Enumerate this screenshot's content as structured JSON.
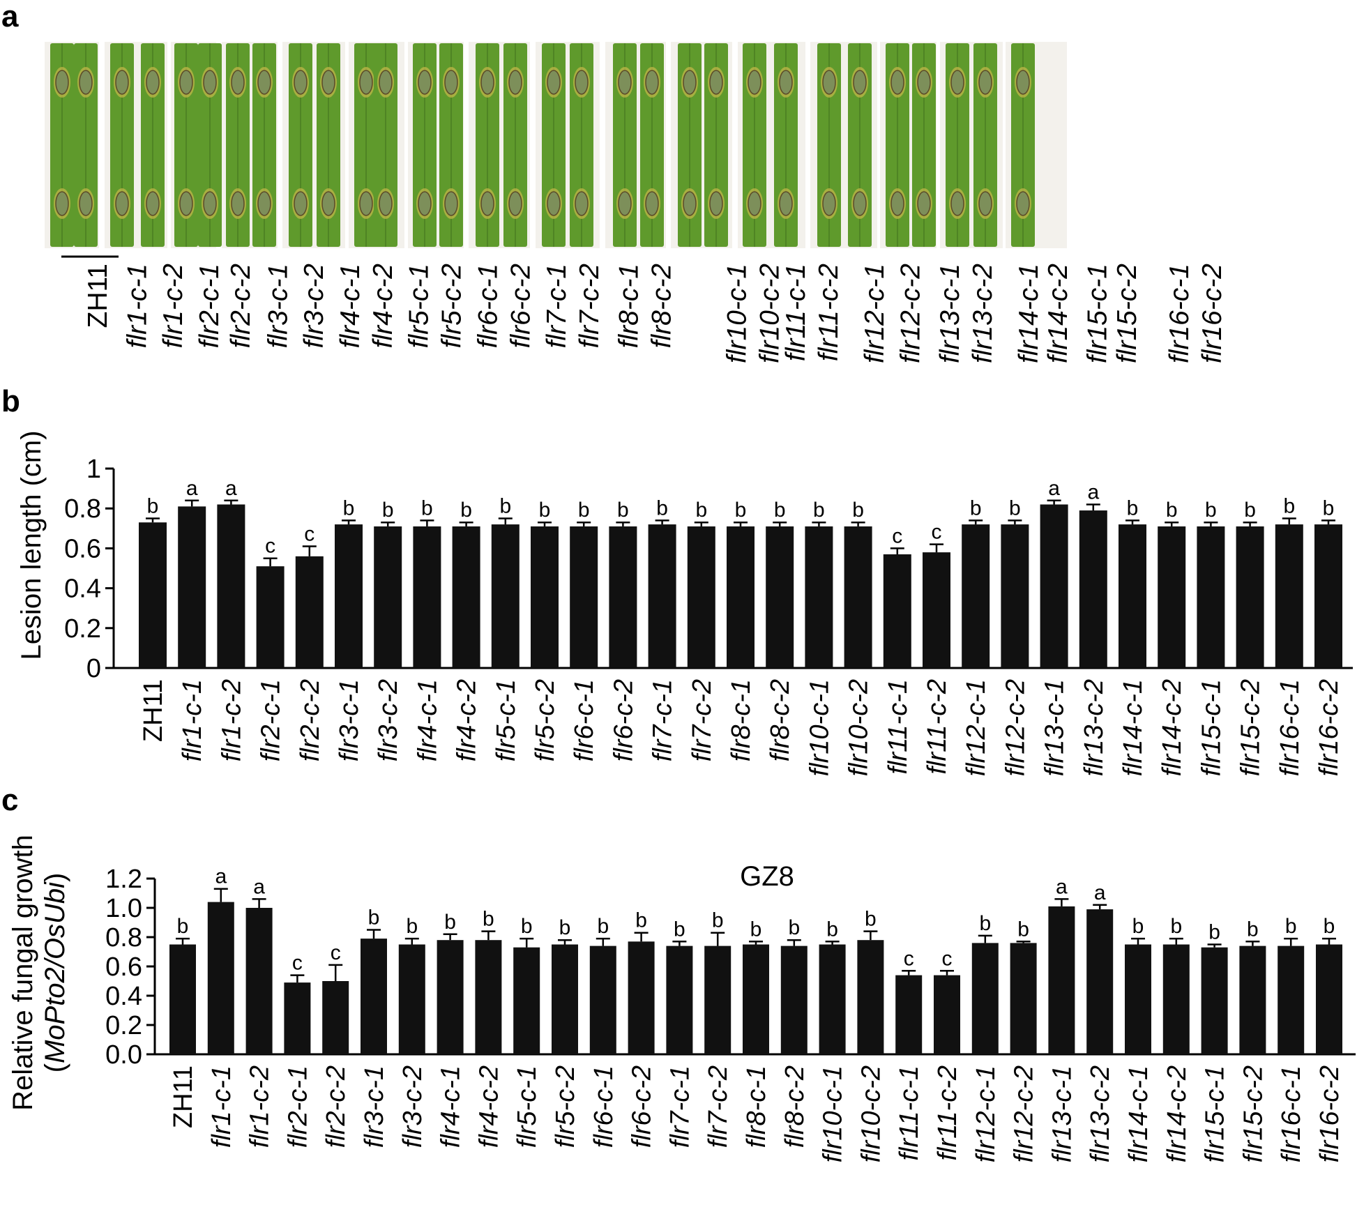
{
  "panels": {
    "a": "a",
    "b": "b",
    "c": "c"
  },
  "photo_strip": {
    "labels": [
      "ZH11",
      "flr1-c-1",
      "flr1-c-2",
      "flr2-c-1",
      "flr2-c-2",
      "flr3-c-1",
      "flr3-c-2",
      "flr4-c-1",
      "flr4-c-2",
      "flr5-c-1",
      "flr5-c-2",
      "flr6-c-1",
      "flr6-c-2",
      "flr7-c-1",
      "flr7-c-2",
      "flr8-c-1",
      "flr8-c-2",
      "flr10-c-1",
      "flr10-c-2",
      "flr11-c-1",
      "flr11-c-2",
      "flr12-c-1",
      "flr12-c-2",
      "flr13-c-1",
      "flr13-c-2",
      "flr14-c-1",
      "flr14-c-2",
      "flr15-c-1",
      "flr15-c-2",
      "flr16-c-1",
      "flr16-c-2"
    ],
    "label_style": {
      "ZH11": "upright",
      "default": "italic"
    },
    "leaf_color": "#5f9a2c",
    "lesion_color": "#7d8f5a",
    "background_color": "#f3f1ec"
  },
  "chart_data": [
    {
      "type": "bar",
      "panel": "b",
      "title": "",
      "xlabel": "",
      "ylabel": "Lesion length (cm)",
      "ylim": [
        0,
        1
      ],
      "yticks": [
        "0",
        "0.2",
        "0.4",
        "0.6",
        "0.8",
        "1"
      ],
      "categories": [
        "ZH11",
        "flr1-c-1",
        "flr1-c-2",
        "flr2-c-1",
        "flr2-c-2",
        "flr3-c-1",
        "flr3-c-2",
        "flr4-c-1",
        "flr4-c-2",
        "flr5-c-1",
        "flr5-c-2",
        "flr6-c-1",
        "flr6-c-2",
        "flr7-c-1",
        "flr7-c-2",
        "flr8-c-1",
        "flr8-c-2",
        "flr10-c-1",
        "flr10-c-2",
        "flr11-c-1",
        "flr11-c-2",
        "flr12-c-1",
        "flr12-c-2",
        "flr13-c-1",
        "flr13-c-2",
        "flr14-c-1",
        "flr14-c-2",
        "flr15-c-1",
        "flr15-c-2",
        "flr16-c-1",
        "flr16-c-2"
      ],
      "values": [
        0.73,
        0.81,
        0.82,
        0.51,
        0.56,
        0.72,
        0.71,
        0.71,
        0.71,
        0.72,
        0.71,
        0.71,
        0.71,
        0.72,
        0.71,
        0.71,
        0.71,
        0.71,
        0.71,
        0.57,
        0.58,
        0.72,
        0.72,
        0.82,
        0.79,
        0.72,
        0.71,
        0.71,
        0.71,
        0.72,
        0.72
      ],
      "errors": [
        0.02,
        0.03,
        0.02,
        0.04,
        0.05,
        0.02,
        0.02,
        0.03,
        0.02,
        0.03,
        0.02,
        0.02,
        0.02,
        0.02,
        0.02,
        0.02,
        0.02,
        0.02,
        0.02,
        0.03,
        0.04,
        0.02,
        0.02,
        0.02,
        0.03,
        0.02,
        0.02,
        0.02,
        0.02,
        0.03,
        0.02
      ],
      "sig_letters": [
        "b",
        "a",
        "a",
        "c",
        "c",
        "b",
        "b",
        "b",
        "b",
        "b",
        "b",
        "b",
        "b",
        "b",
        "b",
        "b",
        "b",
        "b",
        "b",
        "c",
        "c",
        "b",
        "b",
        "a",
        "a",
        "b",
        "b",
        "b",
        "b",
        "b",
        "b"
      ],
      "bar_color": "#111111",
      "grid": false,
      "legend": "none"
    },
    {
      "type": "bar",
      "panel": "c",
      "title": "GZ8",
      "xlabel": "",
      "ylabel": "Relative fungal growth",
      "ylabel_sub": [
        "(",
        "MoPto2/OsUbi",
        ")"
      ],
      "ylim": [
        0,
        1.2
      ],
      "yticks": [
        "0.0",
        "0.2",
        "0.4",
        "0.6",
        "0.8",
        "1.0",
        "1.2"
      ],
      "categories": [
        "ZH11",
        "flr1-c-1",
        "flr1-c-2",
        "flr2-c-1",
        "flr2-c-2",
        "flr3-c-1",
        "flr3-c-2",
        "flr4-c-1",
        "flr4-c-2",
        "flr5-c-1",
        "flr5-c-2",
        "flr6-c-1",
        "flr6-c-2",
        "flr7-c-1",
        "flr7-c-2",
        "flr8-c-1",
        "flr8-c-2",
        "flr10-c-1",
        "flr10-c-2",
        "flr11-c-1",
        "flr11-c-2",
        "flr12-c-1",
        "flr12-c-2",
        "flr13-c-1",
        "flr13-c-2",
        "flr14-c-1",
        "flr14-c-2",
        "flr15-c-1",
        "flr15-c-2",
        "flr16-c-1",
        "flr16-c-2"
      ],
      "values": [
        0.75,
        1.04,
        1.0,
        0.49,
        0.5,
        0.79,
        0.75,
        0.78,
        0.78,
        0.73,
        0.75,
        0.74,
        0.77,
        0.74,
        0.74,
        0.75,
        0.74,
        0.75,
        0.78,
        0.54,
        0.54,
        0.76,
        0.76,
        1.01,
        0.99,
        0.75,
        0.75,
        0.73,
        0.74,
        0.74,
        0.75
      ],
      "errors": [
        0.04,
        0.09,
        0.06,
        0.05,
        0.11,
        0.06,
        0.04,
        0.04,
        0.06,
        0.06,
        0.03,
        0.05,
        0.06,
        0.03,
        0.09,
        0.02,
        0.04,
        0.02,
        0.06,
        0.03,
        0.03,
        0.05,
        0.01,
        0.05,
        0.03,
        0.04,
        0.04,
        0.02,
        0.03,
        0.05,
        0.04
      ],
      "sig_letters": [
        "b",
        "a",
        "a",
        "c",
        "c",
        "b",
        "b",
        "b",
        "b",
        "b",
        "b",
        "b",
        "b",
        "b",
        "b",
        "b",
        "b",
        "b",
        "b",
        "c",
        "c",
        "b",
        "b",
        "a",
        "a",
        "b",
        "b",
        "b",
        "b",
        "b",
        "b"
      ],
      "bar_color": "#111111",
      "grid": false,
      "legend": "none"
    }
  ]
}
